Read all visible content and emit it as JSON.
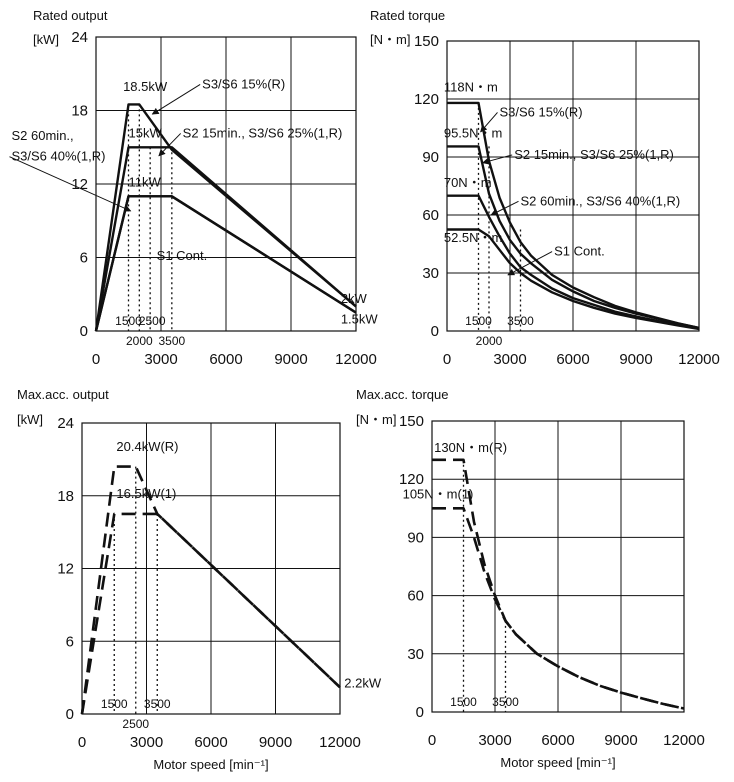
{
  "chart_data": [
    {
      "id": "rated_output",
      "type": "line",
      "title": "Rated output",
      "ylabel": "[kW]",
      "xlabel": "",
      "xlim": [
        0,
        12000
      ],
      "ylim": [
        0,
        24
      ],
      "xticks": [
        "0",
        "3000",
        "6000",
        "9000",
        "12000"
      ],
      "yticks": [
        "0",
        "6",
        "12",
        "18",
        "24"
      ],
      "grid": true,
      "series": [
        {
          "name": "S3/S6 15%(R)",
          "dash": "solid",
          "x": [
            0,
            1500,
            2000,
            3500,
            12000
          ],
          "y": [
            0,
            18.5,
            18.5,
            14.8,
            2
          ]
        },
        {
          "name": "S2 15min., S3/S6 25%(1,R)",
          "dash": "solid",
          "x": [
            0,
            1500,
            3500,
            12000
          ],
          "y": [
            0,
            15,
            15,
            2
          ]
        },
        {
          "name": "S2 60min., S3/S6 40%(1,R)",
          "dash": "solid",
          "x": [
            0,
            1500,
            3500,
            12000
          ],
          "y": [
            0,
            11,
            11,
            1.5
          ]
        },
        {
          "name": "S1 Cont.",
          "dash": "solid",
          "x": [
            0,
            1500,
            3500,
            12000
          ],
          "y": [
            0,
            11,
            11,
            1.5
          ]
        }
      ],
      "guides": [
        {
          "x": 1500,
          "y": 18.5,
          "label": "1500"
        },
        {
          "x": 2000,
          "y": 18.5,
          "label": "2000"
        },
        {
          "x": 2500,
          "y": 15,
          "label": "2500"
        },
        {
          "x": 3500,
          "y": 15,
          "label": "3500"
        }
      ],
      "point_labels": [
        {
          "text": "18.5kW",
          "x": 1250,
          "y": 19.6
        },
        {
          "text": "15kW",
          "x": 1500,
          "y": 15.8
        },
        {
          "text": "11kW",
          "x": 1500,
          "y": 11.8
        },
        {
          "text": "2kW",
          "x": 11300,
          "y": 2.3
        },
        {
          "text": "1.5kW",
          "x": 11300,
          "y": 0.6
        }
      ],
      "annotations": [
        {
          "text": "S3/S6 15%(R)",
          "x": 4900,
          "y": 19.8,
          "arrow_to": [
            2600,
            17.7
          ]
        },
        {
          "text": "S2 15min., S3/S6 25%(1,R)",
          "x": 4000,
          "y": 15.8,
          "arrow_to": [
            2900,
            14.3
          ]
        },
        {
          "text": "S2 60min.,",
          "x": -3900,
          "y": 15.6
        },
        {
          "text": "S3/S6 40%(1,R)",
          "x": -3900,
          "y": 13.9,
          "arrow_to": [
            1600,
            9.8
          ]
        },
        {
          "text": "S1 Cont.",
          "x": 2800,
          "y": 5.8
        }
      ]
    },
    {
      "id": "rated_torque",
      "type": "line",
      "title": "Rated torque",
      "ylabel": "[N・m]",
      "xlabel": "",
      "xlim": [
        0,
        12000
      ],
      "ylim": [
        0,
        150
      ],
      "xticks": [
        "0",
        "3000",
        "6000",
        "9000",
        "12000"
      ],
      "yticks": [
        "0",
        "30",
        "60",
        "90",
        "120",
        "150"
      ],
      "grid": true,
      "series": [
        {
          "name": "S3/S6 15%(R)",
          "dash": "solid",
          "x": [
            0,
            1500,
            2000,
            2500,
            3000,
            3500,
            4000,
            5000,
            6000,
            7000,
            8000,
            9000,
            10000,
            11000,
            12000
          ],
          "y": [
            118,
            118,
            88,
            69,
            56,
            46,
            39,
            29,
            22.5,
            17.5,
            13,
            9.6,
            6.8,
            4,
            1.6
          ]
        },
        {
          "name": "S2 15min., S3/S6 25%(1,R)",
          "dash": "solid",
          "x": [
            0,
            1500,
            2000,
            2500,
            3000,
            3500,
            4000,
            5000,
            6000,
            7000,
            8000,
            9000,
            10000,
            11000,
            12000
          ],
          "y": [
            95.5,
            95.5,
            71,
            57,
            47,
            40,
            35,
            26.5,
            20.5,
            15.5,
            12,
            9,
            6.5,
            3.9,
            1.6
          ]
        },
        {
          "name": "S2 60min., S3/S6 40%(1,R)",
          "dash": "solid",
          "x": [
            0,
            1500,
            2000,
            2500,
            3000,
            3500,
            4000,
            5000,
            6000,
            7000,
            8000,
            9000,
            10000,
            11000,
            12000
          ],
          "y": [
            70,
            70,
            59,
            49,
            40,
            33,
            29,
            22,
            17,
            13.5,
            10,
            7.5,
            5.3,
            3.2,
            1.2
          ]
        },
        {
          "name": "S1 Cont.",
          "dash": "solid",
          "x": [
            0,
            1500,
            2000,
            2500,
            3000,
            3500,
            4000,
            5000,
            6000,
            7000,
            8000,
            9000,
            10000,
            11000,
            12000
          ],
          "y": [
            52.5,
            52.5,
            49,
            42,
            35,
            30,
            26,
            20,
            15.5,
            12,
            9,
            6.8,
            4.8,
            2.9,
            1.1
          ]
        }
      ],
      "guides": [
        {
          "x": 1500,
          "y": 118,
          "label": "1500"
        },
        {
          "x": 2000,
          "y": 95.5,
          "label": "2000"
        },
        {
          "x": 3500,
          "y": 52.5,
          "label": "3500"
        }
      ],
      "point_labels": [
        {
          "text": "118N・m",
          "x": -150,
          "y": 124
        },
        {
          "text": "95.5N・m",
          "x": -150,
          "y": 100
        },
        {
          "text": "70N・m",
          "x": -150,
          "y": 74.5
        },
        {
          "text": "52.5N・m",
          "x": -150,
          "y": 46
        }
      ],
      "annotations": [
        {
          "text": "S3/S6 15%(R)",
          "x": 2500,
          "y": 111,
          "arrow_to": [
            1600,
            103
          ]
        },
        {
          "text": "S2 15min., S3/S6 25%(1,R)",
          "x": 3200,
          "y": 89,
          "arrow_to": [
            1700,
            87
          ]
        },
        {
          "text": "S2 60min., S3/S6 40%(1,R)",
          "x": 3500,
          "y": 65,
          "arrow_to": [
            2100,
            60
          ]
        },
        {
          "text": "S1 Cont.",
          "x": 5100,
          "y": 39,
          "arrow_to": [
            2900,
            29
          ]
        }
      ]
    },
    {
      "id": "max_acc_output",
      "type": "line",
      "title": "Max.acc. output",
      "ylabel": "[kW]",
      "xlabel": "Motor speed [min⁻¹]",
      "xlim": [
        0,
        12000
      ],
      "ylim": [
        0,
        24
      ],
      "xticks": [
        "0",
        "3000",
        "6000",
        "9000",
        "12000"
      ],
      "yticks": [
        "0",
        "6",
        "12",
        "18",
        "24"
      ],
      "grid": true,
      "series": [
        {
          "name": "20.4kW(R)",
          "dash": "dashed",
          "x": [
            0,
            1500,
            2500,
            3500,
            12000
          ],
          "y": [
            0,
            20.4,
            20.4,
            16.5,
            2.2
          ]
        },
        {
          "name": "16.5kW(1)",
          "dash": "dashed",
          "x": [
            0,
            1500,
            3500,
            12000
          ],
          "y": [
            0,
            16.5,
            16.5,
            2.2
          ]
        }
      ],
      "guides": [
        {
          "x": 1500,
          "y": 16.5,
          "label": "1500"
        },
        {
          "x": 2500,
          "y": 20.4,
          "label": "2500"
        },
        {
          "x": 3500,
          "y": 16.5,
          "label": "3500"
        }
      ],
      "point_labels": [
        {
          "text": "20.4kW(R)",
          "x": 1600,
          "y": 21.7
        },
        {
          "text": "16.5kW(1)",
          "x": 1600,
          "y": 17.8
        },
        {
          "text": "2.2kW",
          "x": 12200,
          "y": 2.2
        }
      ],
      "annotations": []
    },
    {
      "id": "max_acc_torque",
      "type": "line",
      "title": "Max.acc. torque",
      "ylabel": "[N・m]",
      "xlabel": "Motor speed [min⁻¹]",
      "xlim": [
        0,
        12000
      ],
      "ylim": [
        0,
        150
      ],
      "xticks": [
        "0",
        "3000",
        "6000",
        "9000",
        "12000"
      ],
      "yticks": [
        "0",
        "30",
        "60",
        "90",
        "120",
        "150"
      ],
      "grid": true,
      "series": [
        {
          "name": "130N・m(R)",
          "dash": "dashed",
          "x": [
            0,
            1500,
            2000,
            2500,
            3000,
            3500,
            4000,
            5000,
            6000,
            7000,
            8000,
            9000,
            10000,
            11000,
            12000
          ],
          "y": [
            130,
            130,
            98,
            76,
            60,
            47,
            40,
            30,
            23.5,
            18,
            13.5,
            10,
            7,
            4.2,
            1.8
          ]
        },
        {
          "name": "105N・m(1)",
          "dash": "dashed",
          "x": [
            0,
            1500,
            2000,
            2500,
            3000,
            3500,
            4000,
            5000,
            6000,
            7000,
            8000,
            9000,
            10000,
            11000,
            12000
          ],
          "y": [
            105,
            105,
            90,
            72,
            58,
            47,
            40,
            30,
            23.5,
            18,
            13.5,
            10,
            7,
            4.2,
            1.8
          ]
        }
      ],
      "guides": [
        {
          "x": 1500,
          "y": 130,
          "label": "1500"
        },
        {
          "x": 3500,
          "y": 47,
          "label": "3500"
        }
      ],
      "point_labels": [
        {
          "text": "130N・m(R)",
          "x": 100,
          "y": 134
        },
        {
          "text": "105N・m(1)",
          "x": -1400,
          "y": 110
        }
      ],
      "annotations": []
    }
  ]
}
